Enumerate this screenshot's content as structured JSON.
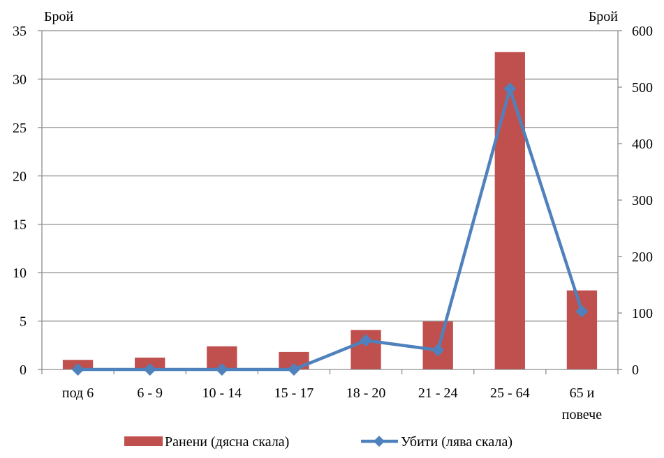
{
  "chart_data": {
    "type": "bar",
    "categories": [
      "под 6",
      "6 - 9",
      "10 - 14",
      "15 - 17",
      "18 - 20",
      "21 - 24",
      "25 - 64",
      "65 и повече"
    ],
    "category_label_lines": [
      [
        "под 6"
      ],
      [
        "6 - 9"
      ],
      [
        "10 - 14"
      ],
      [
        "15 - 17"
      ],
      [
        "18 - 20"
      ],
      [
        "21 - 24"
      ],
      [
        "25 - 64"
      ],
      [
        "65 и",
        "повече"
      ]
    ],
    "left_axis": {
      "label": "Брой",
      "range": [
        0,
        35
      ],
      "ticks": [
        "0",
        "5",
        "10",
        "15",
        "20",
        "25",
        "30",
        "35"
      ]
    },
    "right_axis": {
      "label": "Брой",
      "range": [
        0,
        600
      ],
      "ticks": [
        "0",
        "100",
        "200",
        "300",
        "400",
        "500",
        "600"
      ]
    },
    "series": [
      {
        "name": "Ранени (дясна скала)",
        "kind": "bar",
        "axis": "right",
        "color": "#C0504D",
        "values": [
          17,
          21,
          41,
          31,
          70,
          85,
          562,
          140
        ]
      },
      {
        "name": "Убити (лява скала)",
        "kind": "line",
        "axis": "left",
        "color": "#4F81BD",
        "marker": "diamond",
        "values": [
          0,
          0,
          0,
          0,
          3,
          2,
          29,
          6
        ]
      }
    ],
    "grid": "horizontal",
    "legend_position": "bottom"
  }
}
